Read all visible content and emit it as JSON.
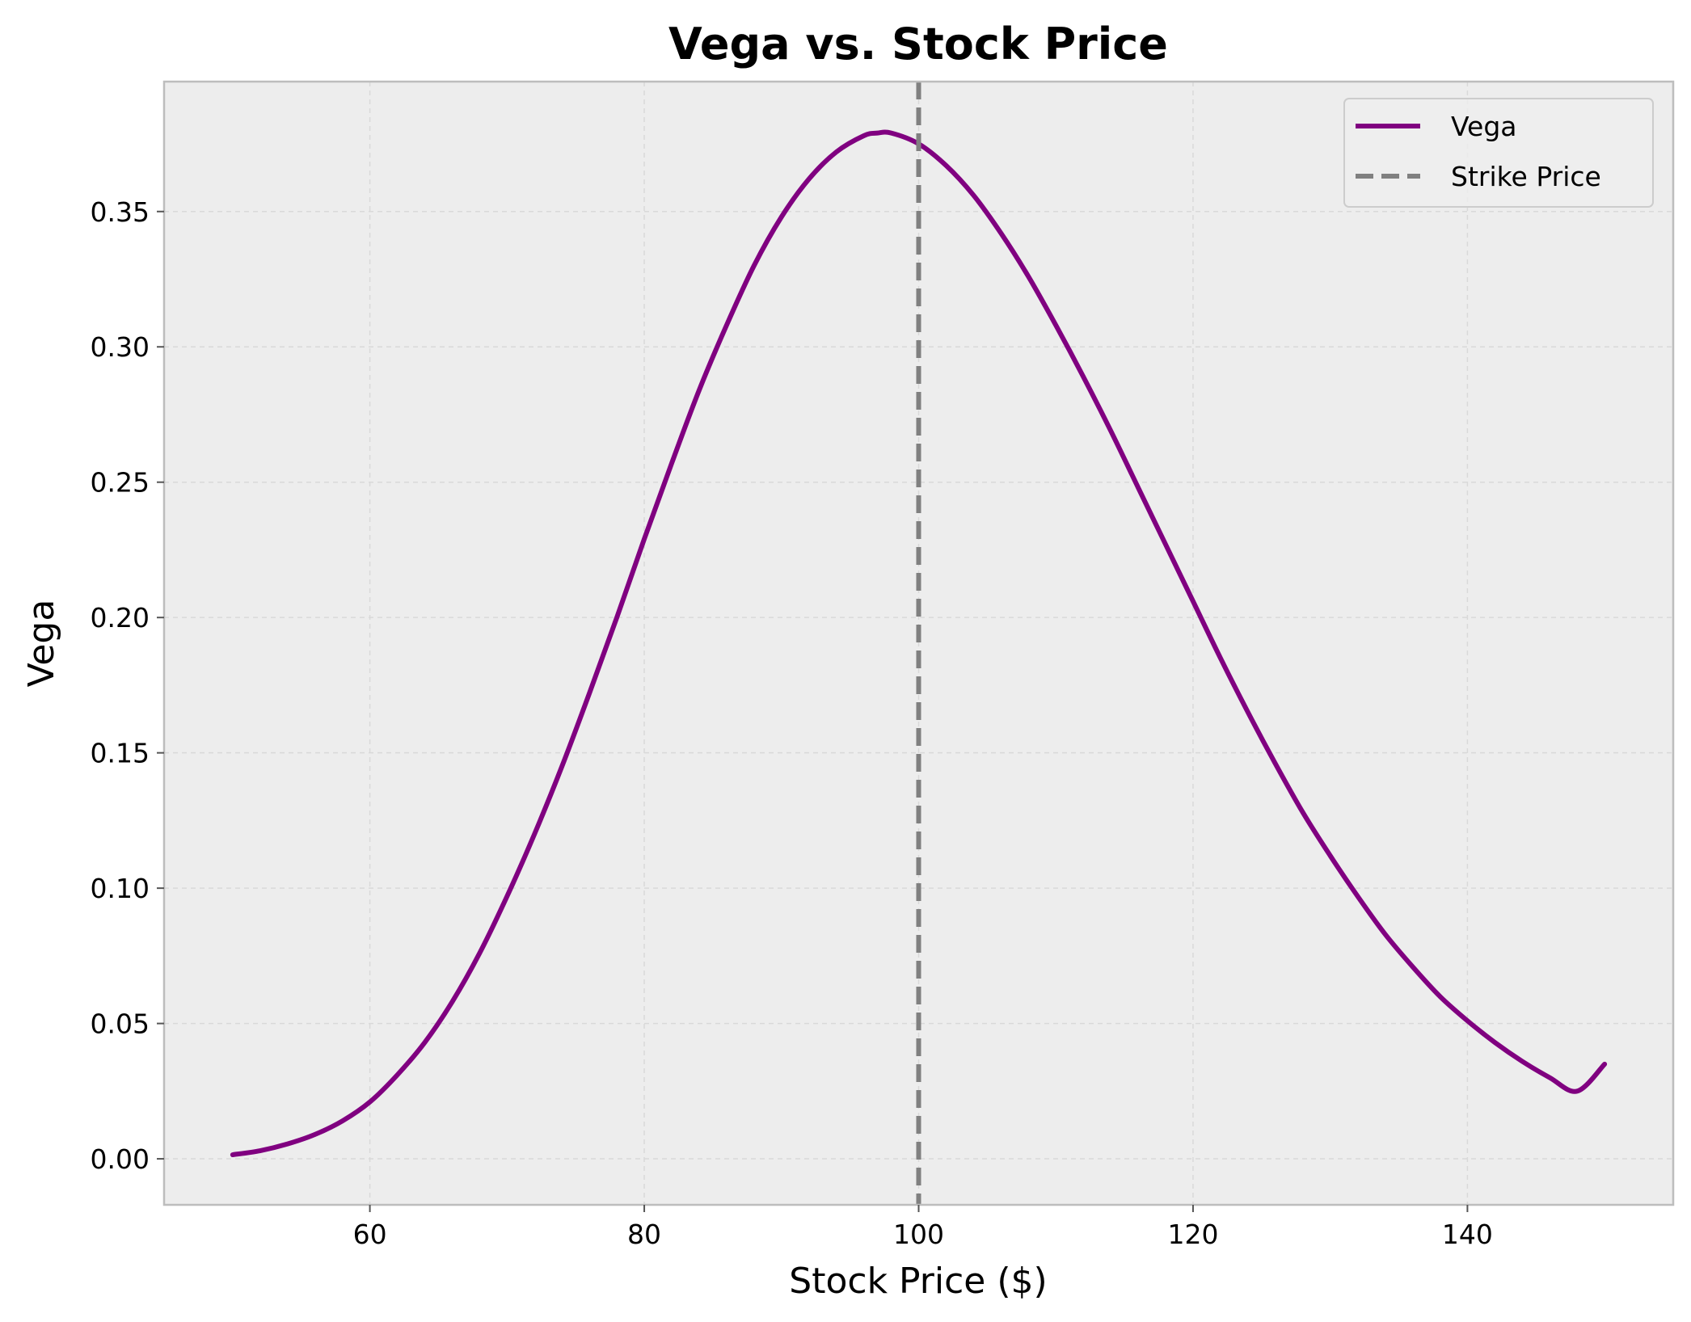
{
  "colors": {
    "figure_bg": "#ffffff",
    "plot_bg": "#ededed",
    "spine": "#bdbdbd",
    "grid": "#d9d9d9",
    "vega_line": "#800080",
    "strike_line": "#808080"
  },
  "chart_data": {
    "type": "line",
    "title": "Vega vs. Stock Price",
    "xlabel": "Stock Price ($)",
    "ylabel": "Vega",
    "xlim": [
      45,
      155
    ],
    "ylim": [
      -0.017,
      0.398
    ],
    "grid": true,
    "legend_position": "top-right",
    "x_ticks": [
      60,
      80,
      100,
      120,
      140
    ],
    "x_tick_labels": [
      "60",
      "80",
      "100",
      "120",
      "140"
    ],
    "y_ticks": [
      0.0,
      0.05,
      0.1,
      0.15,
      0.2,
      0.25,
      0.3,
      0.35
    ],
    "y_tick_labels": [
      "0.00",
      "0.05",
      "0.10",
      "0.15",
      "0.20",
      "0.25",
      "0.30",
      "0.35"
    ],
    "series": [
      {
        "name": "Vega",
        "style": "solid",
        "color": "#800080",
        "x": [
          50,
          52,
          54,
          56,
          58,
          60,
          62,
          64,
          66,
          68,
          70,
          72,
          74,
          76,
          78,
          80,
          82,
          84,
          86,
          88,
          90,
          92,
          94,
          96,
          97,
          98,
          100,
          102,
          104,
          106,
          108,
          110,
          112,
          114,
          116,
          118,
          120,
          122,
          124,
          126,
          128,
          130,
          132,
          134,
          136,
          138,
          140,
          142,
          144,
          146,
          148,
          150
        ],
        "y": [
          0.0015,
          0.003,
          0.0055,
          0.009,
          0.014,
          0.021,
          0.031,
          0.043,
          0.058,
          0.076,
          0.097,
          0.12,
          0.145,
          0.172,
          0.2,
          0.229,
          0.257,
          0.284,
          0.308,
          0.33,
          0.348,
          0.362,
          0.372,
          0.378,
          0.379,
          0.379,
          0.375,
          0.367,
          0.356,
          0.342,
          0.326,
          0.308,
          0.289,
          0.269,
          0.248,
          0.227,
          0.206,
          0.185,
          0.165,
          0.146,
          0.128,
          0.112,
          0.097,
          0.083,
          0.071,
          0.06,
          0.051,
          0.043,
          0.036,
          0.03,
          0.025,
          0.035
        ]
      },
      {
        "name": "Strike Price",
        "style": "dashed",
        "color": "#808080",
        "vertical_line_x": 100
      }
    ]
  }
}
